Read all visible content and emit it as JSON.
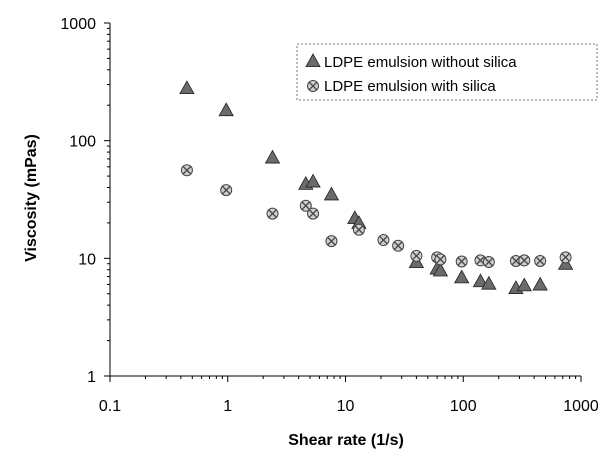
{
  "chart_data": {
    "type": "scatter",
    "xscale": "log",
    "yscale": "log",
    "xlim": [
      0.1,
      1000
    ],
    "ylim": [
      1,
      1000
    ],
    "xlabel": "Shear rate (1/s)",
    "ylabel": "Viscosity (mPas)",
    "x_ticks": [
      "0.1",
      "1",
      "10",
      "100",
      "1000"
    ],
    "y_ticks": [
      "1",
      "10",
      "100",
      "1000"
    ],
    "grid": false,
    "legend_position": "top-right",
    "series": [
      {
        "name": "LDPE emulsion without silica",
        "marker": "triangle",
        "color": "#6b6b6b",
        "points": [
          [
            0.45,
            280
          ],
          [
            0.97,
            182
          ],
          [
            2.4,
            72
          ],
          [
            4.6,
            43
          ],
          [
            5.3,
            45
          ],
          [
            7.6,
            35
          ],
          [
            12,
            22
          ],
          [
            13,
            20
          ],
          [
            40,
            9.3
          ],
          [
            60,
            8.2
          ],
          [
            64,
            7.9
          ],
          [
            97,
            6.9
          ],
          [
            140,
            6.4
          ],
          [
            165,
            6.1
          ],
          [
            280,
            5.6
          ],
          [
            330,
            5.9
          ],
          [
            450,
            6
          ],
          [
            740,
            9
          ]
        ]
      },
      {
        "name": "LDPE emulsion with silica",
        "marker": "circle-x",
        "color": "#cfcfcf",
        "points": [
          [
            0.45,
            56
          ],
          [
            0.97,
            38
          ],
          [
            2.4,
            24
          ],
          [
            4.6,
            28
          ],
          [
            5.3,
            24
          ],
          [
            7.6,
            14
          ],
          [
            13,
            17.5
          ],
          [
            21,
            14.3
          ],
          [
            28,
            12.8
          ],
          [
            40,
            10.5
          ],
          [
            60,
            10.2
          ],
          [
            64,
            9.8
          ],
          [
            97,
            9.4
          ],
          [
            140,
            9.6
          ],
          [
            165,
            9.3
          ],
          [
            280,
            9.5
          ],
          [
            330,
            9.6
          ],
          [
            450,
            9.5
          ],
          [
            740,
            10.2
          ]
        ]
      }
    ]
  }
}
